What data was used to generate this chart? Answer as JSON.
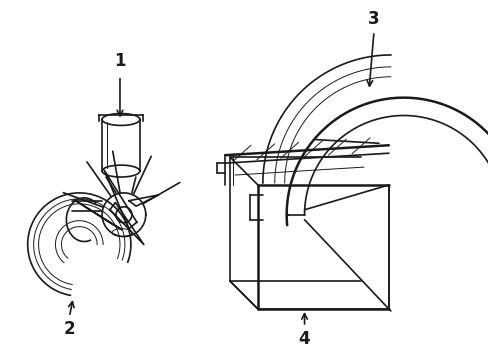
{
  "bg_color": "#ffffff",
  "line_color": "#1a1a1a",
  "lw": 1.2,
  "lw_thin": 0.7,
  "lw_thick": 1.8,
  "label_fontsize": 12,
  "figsize": [
    4.9,
    3.6
  ],
  "dpi": 100
}
